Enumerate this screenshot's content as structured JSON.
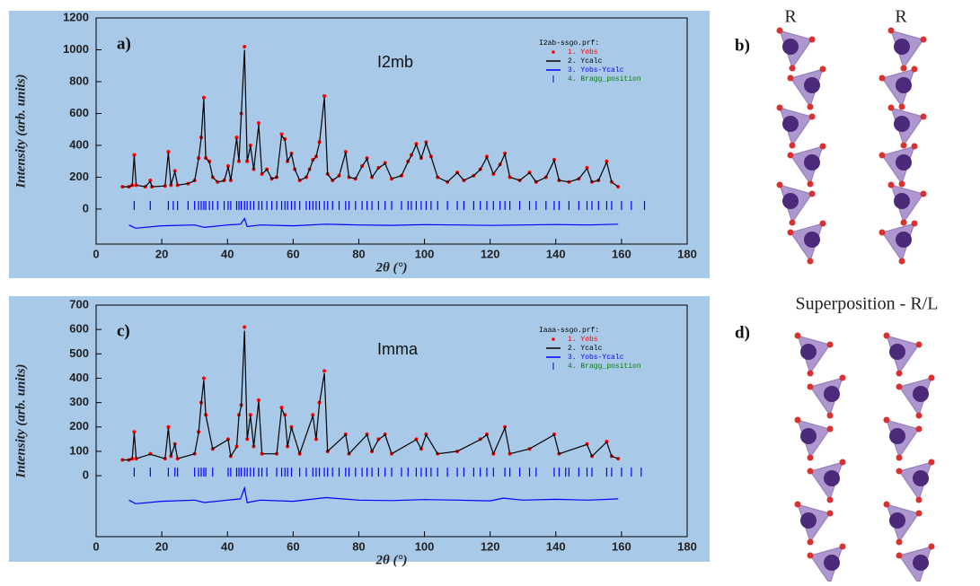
{
  "chart_data": [
    {
      "type": "rietveld",
      "panel_label": "a)",
      "title": "I2mb",
      "xlabel": "2θ (°)",
      "ylabel": "Intensity (arb. units)",
      "legend_title": "I2ab-ssgo.prf:",
      "xlim": [
        0,
        180
      ],
      "xticks": [
        0,
        20,
        40,
        60,
        80,
        100,
        120,
        140,
        160,
        180
      ],
      "ylim": [
        -220,
        1200
      ],
      "yticks": [
        0,
        200,
        400,
        600,
        800,
        1000,
        1200
      ],
      "x": [
        8,
        10,
        11,
        11.6,
        12.2,
        15,
        16.5,
        17,
        21,
        22,
        22.8,
        24,
        24.8,
        28,
        30,
        31.2,
        32,
        32.8,
        33.4,
        34.5,
        35.5,
        37,
        39,
        40.2,
        41,
        42.8,
        43.5,
        44.2,
        45.2,
        46,
        47,
        48,
        49.5,
        50.5,
        52,
        53.5,
        55,
        56.5,
        57.5,
        58.3,
        59.5,
        60.5,
        62,
        64,
        65,
        66,
        67,
        68,
        69.5,
        70.5,
        72,
        74,
        76,
        77,
        79,
        81,
        82.5,
        84,
        86,
        88,
        90,
        93,
        95,
        96,
        97.5,
        99,
        100.5,
        102,
        104,
        107,
        110,
        112,
        115,
        117,
        119,
        121,
        123,
        124.5,
        126,
        129,
        132,
        134,
        137,
        139.5,
        141,
        144,
        147,
        149.5,
        151,
        153,
        155.5,
        157,
        159
      ],
      "series": [
        {
          "name": "1. Yobs",
          "color": "#ff0000",
          "style": "dots",
          "values": [
            140,
            140,
            150,
            340,
            150,
            140,
            180,
            140,
            145,
            360,
            150,
            240,
            150,
            160,
            180,
            320,
            450,
            700,
            320,
            300,
            200,
            170,
            180,
            270,
            180,
            450,
            300,
            600,
            1020,
            300,
            400,
            250,
            540,
            220,
            250,
            190,
            200,
            470,
            440,
            300,
            350,
            250,
            180,
            200,
            250,
            310,
            330,
            420,
            710,
            220,
            180,
            210,
            360,
            200,
            190,
            270,
            320,
            200,
            260,
            290,
            190,
            210,
            300,
            340,
            410,
            320,
            420,
            330,
            200,
            170,
            230,
            180,
            210,
            250,
            330,
            220,
            280,
            350,
            200,
            180,
            230,
            170,
            200,
            310,
            180,
            170,
            190,
            260,
            170,
            180,
            300,
            170,
            140
          ]
        },
        {
          "name": "2. Ycalc",
          "color": "#000000",
          "style": "line",
          "values": [
            140,
            140,
            148,
            335,
            150,
            140,
            175,
            140,
            145,
            355,
            150,
            235,
            150,
            160,
            178,
            318,
            445,
            690,
            320,
            295,
            200,
            170,
            178,
            265,
            180,
            445,
            298,
            595,
            1000,
            300,
            395,
            248,
            530,
            220,
            248,
            190,
            200,
            462,
            435,
            300,
            345,
            250,
            180,
            200,
            248,
            305,
            328,
            415,
            700,
            220,
            180,
            208,
            355,
            200,
            190,
            268,
            315,
            200,
            258,
            285,
            190,
            210,
            298,
            335,
            405,
            318,
            415,
            328,
            200,
            170,
            228,
            180,
            210,
            248,
            325,
            220,
            278,
            345,
            200,
            180,
            228,
            170,
            200,
            305,
            180,
            170,
            190,
            255,
            170,
            180,
            295,
            170,
            140
          ]
        },
        {
          "name": "3. Yobs-Ycalc",
          "color": "#0000ff",
          "style": "line",
          "x": [
            10,
            12,
            20,
            30,
            33,
            40,
            44,
            45.2,
            46,
            50,
            60,
            70,
            80,
            90,
            100,
            110,
            120,
            130,
            140,
            150,
            159
          ],
          "values": [
            -100,
            -120,
            -105,
            -100,
            -115,
            -100,
            -95,
            -60,
            -110,
            -100,
            -105,
            -95,
            -100,
            -102,
            -98,
            -100,
            -103,
            -100,
            -97,
            -100,
            -95
          ]
        },
        {
          "name": "4. Bragg_position",
          "color": "#008000",
          "mark_color": "#0000ff",
          "style": "ticks",
          "x": [
            11.6,
            16.5,
            22,
            23.5,
            24.8,
            28,
            30,
            31.2,
            32,
            32.8,
            33.4,
            34.5,
            35.5,
            37,
            39,
            40.2,
            41,
            42.8,
            43.5,
            44.2,
            45.2,
            46,
            47,
            48,
            49.5,
            50.5,
            52,
            53.5,
            55,
            56.5,
            57.5,
            58.3,
            59.5,
            60.5,
            62,
            64,
            65,
            66,
            67,
            68,
            69.5,
            70.5,
            72,
            74,
            76,
            77,
            79,
            81,
            82.5,
            84,
            86,
            88,
            90,
            93,
            95,
            96,
            97.5,
            99,
            100.5,
            102,
            104,
            107,
            110,
            112,
            115,
            117,
            119,
            121,
            123,
            124.5,
            126,
            129,
            132,
            134,
            137,
            139.5,
            141,
            144,
            147,
            149.5,
            151,
            153,
            155.5,
            157,
            160,
            163,
            167
          ]
        }
      ]
    },
    {
      "type": "rietveld",
      "panel_label": "c)",
      "title": "Imma",
      "xlabel": "2θ (°)",
      "ylabel": "Intensity (arb. units)",
      "legend_title": "Iaaa-ssgo.prf:",
      "xlim": [
        0,
        180
      ],
      "xticks": [
        0,
        20,
        40,
        60,
        80,
        100,
        120,
        140,
        160,
        180
      ],
      "ylim": [
        -250,
        700
      ],
      "yticks": [
        0,
        100,
        200,
        300,
        400,
        500,
        600,
        700
      ],
      "x": [
        8,
        10,
        11,
        11.6,
        12.2,
        16.5,
        21,
        22,
        22.8,
        24,
        24.8,
        30,
        31.2,
        32,
        32.8,
        33.4,
        35.5,
        40.2,
        41,
        42.8,
        43.5,
        44.2,
        45.2,
        46,
        47,
        48,
        49.5,
        50.5,
        55,
        56.5,
        57.5,
        58.3,
        59.5,
        62,
        66,
        67,
        68,
        69.5,
        70.5,
        76,
        77,
        82.5,
        84,
        86,
        88,
        90,
        97.5,
        99,
        100.5,
        104,
        110,
        117,
        119,
        121,
        124.5,
        126,
        132,
        139.5,
        141,
        149.5,
        151,
        155.5,
        157,
        159
      ],
      "series": [
        {
          "name": "1. Yobs",
          "color": "#ff0000",
          "style": "dots",
          "values": [
            65,
            65,
            70,
            180,
            70,
            90,
            70,
            200,
            80,
            130,
            70,
            90,
            180,
            300,
            400,
            250,
            110,
            150,
            80,
            120,
            250,
            290,
            610,
            150,
            250,
            120,
            310,
            90,
            90,
            280,
            250,
            120,
            200,
            90,
            250,
            150,
            300,
            430,
            100,
            170,
            90,
            170,
            100,
            150,
            170,
            90,
            150,
            110,
            170,
            90,
            100,
            150,
            170,
            90,
            200,
            90,
            110,
            170,
            90,
            130,
            80,
            140,
            80,
            70
          ]
        },
        {
          "name": "2. Ycalc",
          "color": "#000000",
          "style": "line",
          "values": [
            65,
            65,
            70,
            176,
            70,
            88,
            70,
            196,
            80,
            128,
            70,
            90,
            176,
            296,
            392,
            248,
            110,
            148,
            80,
            118,
            246,
            286,
            595,
            150,
            246,
            120,
            305,
            90,
            90,
            275,
            246,
            120,
            198,
            90,
            246,
            150,
            296,
            420,
            100,
            168,
            90,
            168,
            100,
            148,
            168,
            90,
            148,
            110,
            168,
            90,
            100,
            148,
            168,
            90,
            196,
            90,
            110,
            168,
            90,
            128,
            80,
            138,
            80,
            70
          ]
        },
        {
          "name": "3. Yobs-Ycalc",
          "color": "#0000ff",
          "style": "line",
          "x": [
            10,
            12,
            20,
            30,
            33,
            40,
            44,
            45.2,
            46,
            50,
            60,
            70,
            80,
            90,
            100,
            110,
            120,
            124,
            130,
            140,
            150,
            159
          ],
          "values": [
            -100,
            -115,
            -105,
            -100,
            -110,
            -100,
            -95,
            -50,
            -110,
            -100,
            -105,
            -90,
            -100,
            -102,
            -98,
            -100,
            -103,
            -92,
            -100,
            -97,
            -100,
            -95
          ]
        },
        {
          "name": "4. Bragg_position",
          "color": "#008000",
          "mark_color": "#0000ff",
          "style": "ticks",
          "x": [
            11.6,
            16.5,
            22,
            24,
            24.8,
            30,
            31.2,
            32,
            32.8,
            33.4,
            35.5,
            40.2,
            41,
            42.8,
            43.5,
            44.2,
            45.2,
            46,
            47,
            48,
            49.5,
            50.5,
            52,
            55,
            56.5,
            57.5,
            58.3,
            59.5,
            62,
            64,
            66,
            67,
            68,
            69.5,
            70.5,
            72,
            74,
            76,
            77,
            79,
            81,
            82.5,
            84,
            86,
            88,
            90,
            93,
            95,
            97.5,
            99,
            100.5,
            102,
            104,
            107,
            110,
            112,
            115,
            117,
            119,
            121,
            124.5,
            126,
            129,
            132,
            134,
            139.5,
            141,
            143,
            144,
            147,
            149.5,
            151,
            155.5,
            157,
            160,
            163,
            166
          ]
        }
      ]
    }
  ],
  "structures": {
    "b_label": "b)",
    "b_left": "R",
    "b_right": "R",
    "d_label": "d)",
    "d_title": "Superposition - R/L"
  }
}
